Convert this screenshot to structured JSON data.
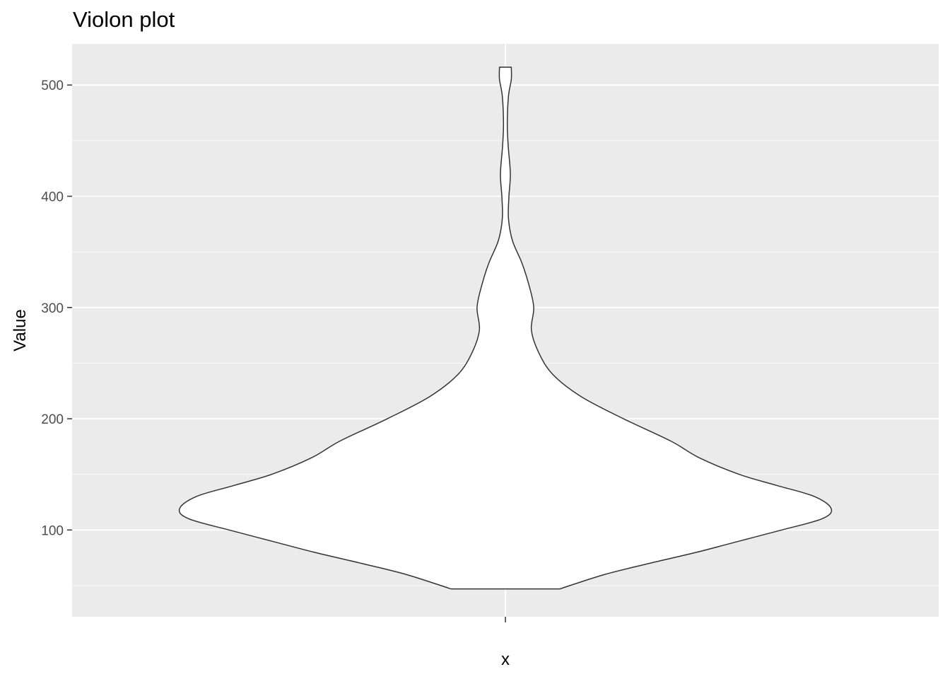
{
  "title": "Violon plot",
  "chart_data": {
    "type": "violin",
    "title": "Violon plot",
    "xlabel": "x",
    "ylabel": "Value",
    "categories": [
      ""
    ],
    "ylim": [
      22,
      537
    ],
    "yticks": [
      100,
      200,
      300,
      400,
      500
    ],
    "grid": true,
    "legend": "none",
    "value_range": [
      47,
      516
    ],
    "density_profile": [
      {
        "y": 47,
        "half_width": 0.23
      },
      {
        "y": 60,
        "half_width": 0.42
      },
      {
        "y": 70,
        "half_width": 0.61
      },
      {
        "y": 80,
        "half_width": 0.81
      },
      {
        "y": 90,
        "half_width": 0.99
      },
      {
        "y": 100,
        "half_width": 1.17
      },
      {
        "y": 110,
        "half_width": 1.34
      },
      {
        "y": 119,
        "half_width": 1.38
      },
      {
        "y": 130,
        "half_width": 1.31
      },
      {
        "y": 140,
        "half_width": 1.15
      },
      {
        "y": 150,
        "half_width": 0.99
      },
      {
        "y": 165,
        "half_width": 0.82
      },
      {
        "y": 180,
        "half_width": 0.7
      },
      {
        "y": 200,
        "half_width": 0.5
      },
      {
        "y": 220,
        "half_width": 0.32
      },
      {
        "y": 240,
        "half_width": 0.2
      },
      {
        "y": 260,
        "half_width": 0.14
      },
      {
        "y": 280,
        "half_width": 0.11
      },
      {
        "y": 300,
        "half_width": 0.12
      },
      {
        "y": 320,
        "half_width": 0.1
      },
      {
        "y": 340,
        "half_width": 0.07
      },
      {
        "y": 360,
        "half_width": 0.03
      },
      {
        "y": 380,
        "half_width": 0.013
      },
      {
        "y": 400,
        "half_width": 0.015
      },
      {
        "y": 420,
        "half_width": 0.021
      },
      {
        "y": 445,
        "half_width": 0.012
      },
      {
        "y": 465,
        "half_width": 0.008
      },
      {
        "y": 490,
        "half_width": 0.013
      },
      {
        "y": 505,
        "half_width": 0.025
      },
      {
        "y": 516,
        "half_width": 0.025
      }
    ]
  },
  "colors": {
    "panel": "#ebebeb",
    "grid": "#ffffff",
    "violin_fill": "#ffffff",
    "violin_stroke": "#333333",
    "tick": "#333333"
  }
}
